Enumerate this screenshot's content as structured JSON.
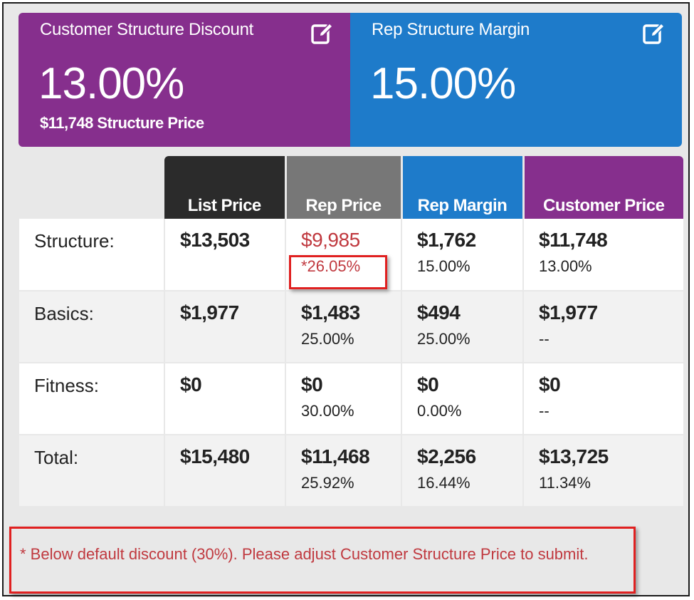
{
  "cards": {
    "customer": {
      "title": "Customer Structure Discount",
      "value": "13.00%",
      "sub": "$11,748 Structure Price",
      "color": "#862f8d",
      "icon": "edit-icon"
    },
    "rep": {
      "title": "Rep Structure Margin",
      "value": "15.00%",
      "color": "#1e7bca",
      "icon": "edit-icon"
    }
  },
  "table": {
    "headers": [
      "List Price",
      "Rep Price",
      "Rep Margin",
      "Customer Price"
    ],
    "rows": [
      {
        "label": "Structure:",
        "list": "$13,503",
        "rep": "$9,985",
        "rep_pct": "*26.05%",
        "margin": "$1,762",
        "margin_pct": "15.00%",
        "cust": "$11,748",
        "cust_pct": "13.00%"
      },
      {
        "label": "Basics:",
        "list": "$1,977",
        "rep": "$1,483",
        "rep_pct": "25.00%",
        "margin": "$494",
        "margin_pct": "25.00%",
        "cust": "$1,977",
        "cust_pct": "--"
      },
      {
        "label": "Fitness:",
        "list": "$0",
        "rep": "$0",
        "rep_pct": "30.00%",
        "margin": "$0",
        "margin_pct": "0.00%",
        "cust": "$0",
        "cust_pct": "--"
      },
      {
        "label": "Total:",
        "list": "$15,480",
        "rep": "$11,468",
        "rep_pct": "25.92%",
        "margin": "$2,256",
        "margin_pct": "16.44%",
        "cust": "$13,725",
        "cust_pct": "11.34%"
      }
    ]
  },
  "note": "* Below default discount (30%). Please adjust Customer Structure Price to submit.",
  "colors": {
    "purple": "#862f8d",
    "blue": "#1e7bca",
    "dark": "#2b2b2b",
    "gray": "#777777",
    "warning": "#c0393f",
    "highlight": "#e02020"
  }
}
